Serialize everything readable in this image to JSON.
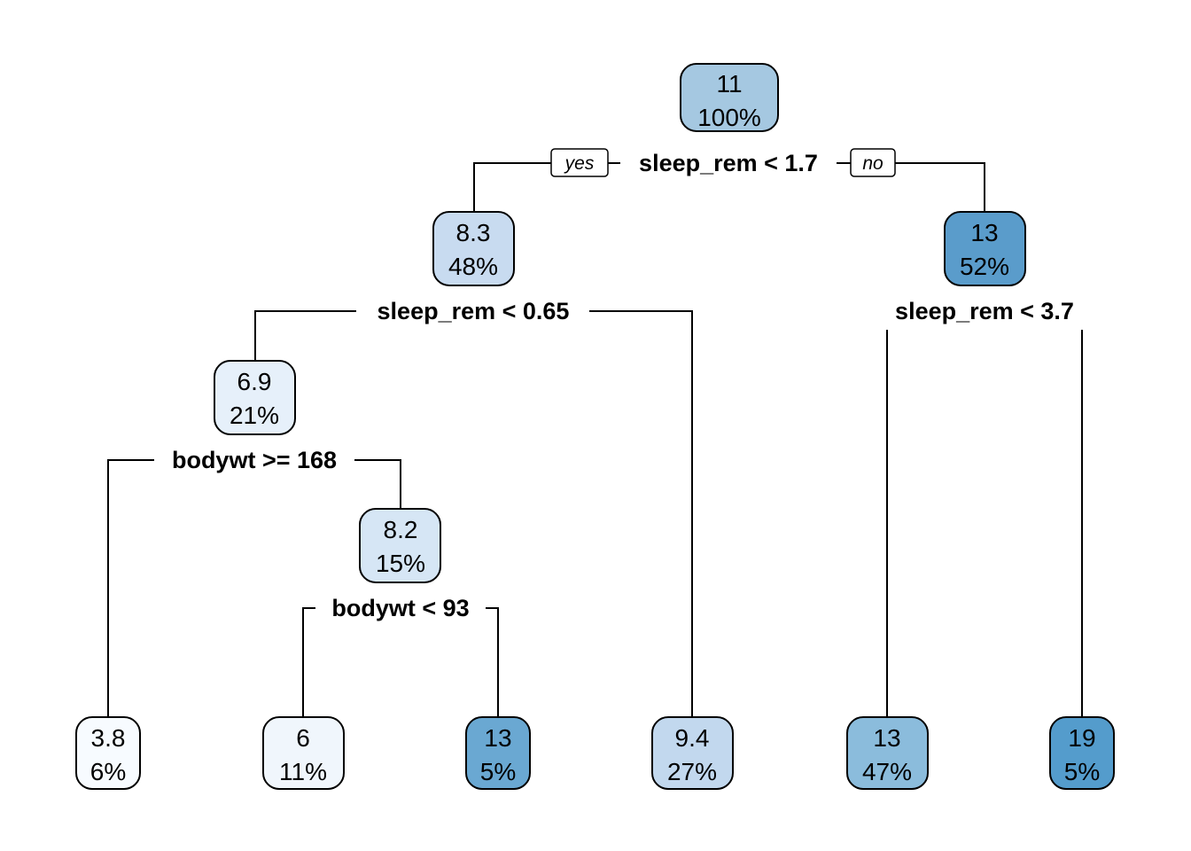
{
  "tree": {
    "yes_label": "yes",
    "no_label": "no",
    "nodes": [
      {
        "id": "root",
        "value": "11",
        "percent": "100%",
        "fill": "#a5c8e1"
      },
      {
        "id": "n_l",
        "value": "8.3",
        "percent": "48%",
        "fill": "#c8dbf0"
      },
      {
        "id": "n_r",
        "value": "13",
        "percent": "52%",
        "fill": "#5a9ccb"
      },
      {
        "id": "n_ll",
        "value": "6.9",
        "percent": "21%",
        "fill": "#e6f0fa"
      },
      {
        "id": "n_llr",
        "value": "8.2",
        "percent": "15%",
        "fill": "#d6e6f5"
      },
      {
        "id": "leaf1",
        "value": "3.8",
        "percent": "6%",
        "fill": "#f7fbff"
      },
      {
        "id": "leaf2",
        "value": "6",
        "percent": "11%",
        "fill": "#f0f6fc"
      },
      {
        "id": "leaf3",
        "value": "13",
        "percent": "5%",
        "fill": "#6aa8d2"
      },
      {
        "id": "leaf4",
        "value": "9.4",
        "percent": "27%",
        "fill": "#c2d8ee"
      },
      {
        "id": "leaf5",
        "value": "13",
        "percent": "47%",
        "fill": "#8bbcdc"
      },
      {
        "id": "leaf6",
        "value": "19",
        "percent": "5%",
        "fill": "#549ccc"
      }
    ],
    "splits": [
      {
        "id": "s_root",
        "label": "sleep_rem < 1.7"
      },
      {
        "id": "s_l",
        "label": "sleep_rem < 0.65"
      },
      {
        "id": "s_r",
        "label": "sleep_rem < 3.7"
      },
      {
        "id": "s_ll",
        "label": "bodywt >= 168"
      },
      {
        "id": "s_llr",
        "label": "bodywt < 93"
      }
    ]
  }
}
